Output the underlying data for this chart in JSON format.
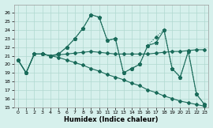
{
  "xlabel": "Humidex (Indice chaleur)",
  "bg_color": "#d6f0ec",
  "grid_color": "#b0d8d0",
  "line_color": "#1a6b5a",
  "xlim": [
    -0.5,
    23.5
  ],
  "ylim": [
    15,
    27
  ],
  "yticks": [
    15,
    16,
    17,
    18,
    19,
    20,
    21,
    22,
    23,
    24,
    25,
    26
  ],
  "xticks": [
    0,
    1,
    2,
    3,
    4,
    5,
    6,
    7,
    8,
    9,
    10,
    11,
    12,
    13,
    14,
    15,
    16,
    17,
    18,
    19,
    20,
    21,
    22,
    23
  ],
  "line1_x": [
    0,
    1,
    2,
    3,
    4,
    5,
    6,
    7,
    8,
    9,
    10,
    11,
    12,
    13,
    14,
    15,
    16,
    17,
    18,
    19,
    20,
    21,
    22,
    23
  ],
  "line1_y": [
    20.5,
    19.0,
    21.2,
    21.2,
    21.0,
    21.2,
    22.0,
    23.0,
    24.2,
    25.8,
    25.5,
    22.8,
    23.0,
    19.0,
    19.5,
    20.0,
    22.2,
    22.5,
    24.0,
    19.5,
    18.5,
    21.5,
    16.5,
    15.3
  ],
  "line2_x": [
    0,
    1,
    2,
    3,
    4,
    5,
    6,
    7,
    8,
    9,
    10,
    11,
    12,
    13,
    14,
    15,
    16,
    17,
    18,
    19,
    20,
    21,
    22,
    23
  ],
  "line2_y": [
    20.5,
    19.0,
    21.2,
    21.2,
    21.0,
    21.1,
    21.2,
    21.3,
    21.4,
    21.5,
    21.4,
    21.3,
    21.2,
    21.2,
    21.2,
    21.2,
    21.2,
    21.3,
    21.4,
    21.5,
    21.5,
    21.6,
    21.7,
    21.7
  ],
  "line3_x": [
    0,
    1,
    2,
    3,
    4,
    5,
    6,
    7,
    8,
    9,
    10,
    11,
    12,
    13,
    14,
    15,
    16,
    17,
    18,
    19,
    20,
    21,
    22,
    23
  ],
  "line3_y": [
    20.5,
    19.0,
    21.2,
    21.2,
    21.0,
    20.8,
    20.5,
    20.2,
    19.9,
    19.5,
    19.2,
    18.8,
    18.5,
    18.2,
    17.8,
    17.5,
    17.0,
    16.7,
    16.3,
    16.0,
    15.7,
    15.5,
    15.3,
    15.1
  ],
  "line4_x": [
    3,
    4,
    5,
    6,
    7,
    8,
    9,
    10,
    11,
    12,
    13,
    14,
    15,
    16,
    17,
    18,
    19,
    20,
    21,
    22,
    23
  ],
  "line4_y": [
    21.2,
    21.0,
    21.2,
    22.0,
    23.0,
    24.2,
    25.8,
    25.5,
    22.8,
    23.0,
    19.0,
    19.5,
    20.0,
    22.2,
    23.2,
    24.0,
    19.5,
    18.5,
    21.5,
    16.5,
    15.3
  ]
}
